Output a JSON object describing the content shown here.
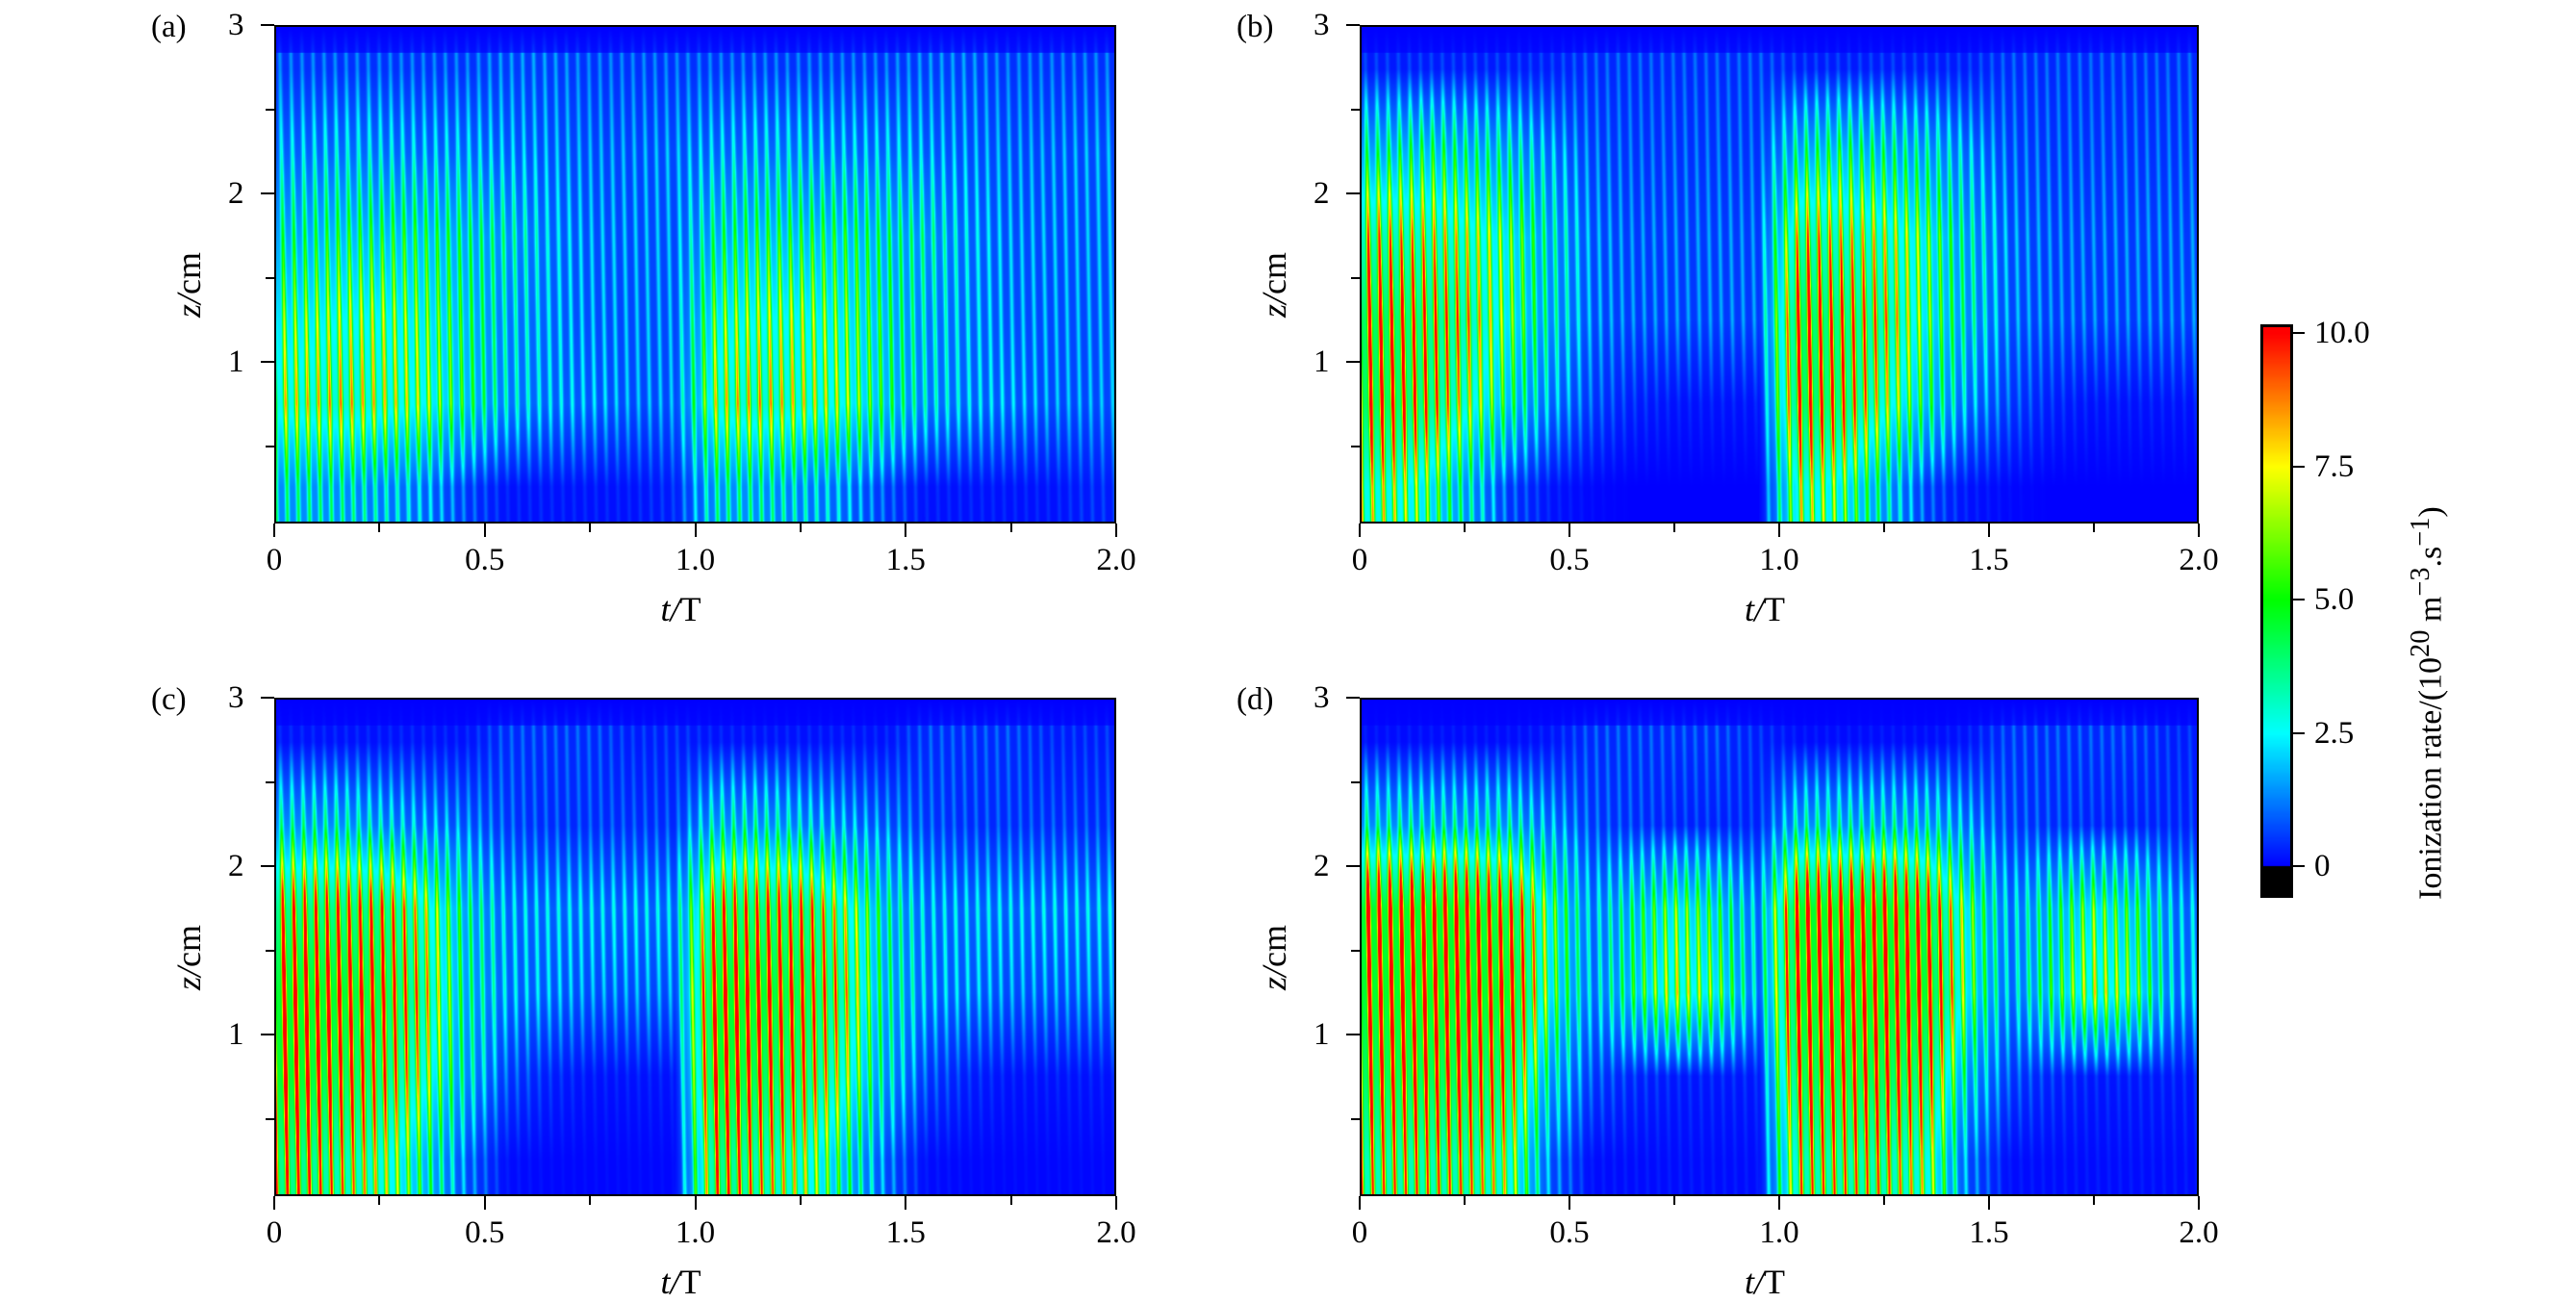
{
  "chart_data": [
    {
      "type": "heatmap",
      "panel_label": "(a)",
      "xlabel": "t/T",
      "ylabel": "z/cm",
      "xlim": [
        0,
        2.0
      ],
      "ylim": [
        0,
        3
      ],
      "xticks": [
        "0",
        "0.5",
        "1.0",
        "1.5",
        "2.0"
      ],
      "yticks": [
        "1",
        "2",
        "3"
      ],
      "z_rows": [
        2.75,
        2.25,
        1.75,
        1.25,
        0.75,
        0.25
      ],
      "t_cols": [
        0.05,
        0.15,
        0.25,
        0.35,
        0.45,
        0.55,
        0.65,
        0.75,
        0.85,
        0.95,
        1.05,
        1.15,
        1.25,
        1.35,
        1.45,
        1.55,
        1.65,
        1.75,
        1.85,
        1.95
      ],
      "values": [
        [
          1,
          1,
          1,
          1,
          1,
          1.2,
          1.2,
          1,
          1,
          1,
          1,
          1,
          1,
          1,
          1,
          1.2,
          1.2,
          1,
          1,
          1
        ],
        [
          2,
          2.2,
          2.2,
          2,
          2,
          1.8,
          1.6,
          1.4,
          1.4,
          1.5,
          2,
          2.2,
          2.2,
          2,
          2,
          1.8,
          1.6,
          1.4,
          1.4,
          1.5
        ],
        [
          3.5,
          4,
          4,
          4,
          3.5,
          3,
          2,
          1.6,
          1.5,
          1.5,
          3.5,
          4,
          4,
          4,
          3.5,
          3,
          2,
          1.6,
          1.5,
          1.5
        ],
        [
          5,
          5.5,
          5.5,
          5,
          4,
          2.5,
          2,
          1.6,
          1.5,
          1.5,
          5,
          5.5,
          5.5,
          5,
          4,
          2.5,
          2,
          1.6,
          1.5,
          1.5
        ],
        [
          6,
          6.5,
          6,
          5.5,
          4,
          2.5,
          2,
          1.8,
          1.5,
          1.5,
          6,
          6.5,
          6,
          5.5,
          4,
          2.5,
          2,
          1.8,
          1.5,
          1.5
        ],
        [
          3,
          3,
          2.5,
          2,
          1,
          0.3,
          0.3,
          0.3,
          0.3,
          0.5,
          3,
          3,
          2.5,
          2,
          1,
          0.3,
          0.3,
          0.3,
          0.3,
          0.5
        ]
      ]
    },
    {
      "type": "heatmap",
      "panel_label": "(b)",
      "xlabel": "t/T",
      "ylabel": "z/cm",
      "xlim": [
        0,
        2.0
      ],
      "ylim": [
        0,
        3
      ],
      "xticks": [
        "0",
        "0.5",
        "1.0",
        "1.5",
        "2.0"
      ],
      "yticks": [
        "1",
        "2",
        "3"
      ],
      "z_rows": [
        2.75,
        2.25,
        1.75,
        1.25,
        0.75,
        0.25
      ],
      "t_cols": [
        0.05,
        0.15,
        0.25,
        0.35,
        0.45,
        0.55,
        0.65,
        0.75,
        0.85,
        0.95,
        1.05,
        1.15,
        1.25,
        1.35,
        1.45,
        1.55,
        1.65,
        1.75,
        1.85,
        1.95
      ],
      "values": [
        [
          0.5,
          0.5,
          0.5,
          0.5,
          0.5,
          0.8,
          0.8,
          0.8,
          0.8,
          0.8,
          0.5,
          0.5,
          0.5,
          0.5,
          0.5,
          0.8,
          0.8,
          0.8,
          0.8,
          0.8
        ],
        [
          3.5,
          4,
          3.5,
          3,
          2,
          1.2,
          1,
          1,
          1,
          1,
          3.5,
          4,
          3.5,
          3,
          2,
          1.2,
          1,
          1,
          1,
          1
        ],
        [
          7,
          6.5,
          6,
          5,
          3,
          1.5,
          1.2,
          1.2,
          1.2,
          1.2,
          7,
          6.5,
          6,
          5,
          3,
          1.5,
          1.2,
          1.2,
          1.2,
          1.2
        ],
        [
          9,
          8,
          7,
          5,
          3,
          1.5,
          1.2,
          1.2,
          1.2,
          1.2,
          9,
          8,
          7,
          5,
          3,
          1.5,
          1.2,
          1.2,
          1.2,
          1.2
        ],
        [
          9,
          8,
          6,
          4,
          2,
          1,
          0.5,
          0.3,
          0.3,
          0.3,
          9,
          8,
          6,
          4,
          2,
          1,
          0.5,
          0.3,
          0.3,
          0.3
        ],
        [
          6,
          5,
          3,
          1,
          0.3,
          0.1,
          0,
          0,
          0,
          0,
          6,
          5,
          3,
          1,
          0.3,
          0.1,
          0,
          0,
          0,
          0
        ]
      ]
    },
    {
      "type": "heatmap",
      "panel_label": "(c)",
      "xlabel": "t/T",
      "ylabel": "z/cm",
      "xlim": [
        0,
        2.0
      ],
      "ylim": [
        0,
        3
      ],
      "xticks": [
        "0",
        "0.5",
        "1.0",
        "1.5",
        "2.0"
      ],
      "yticks": [
        "1",
        "2",
        "3"
      ],
      "z_rows": [
        2.75,
        2.25,
        1.75,
        1.25,
        0.75,
        0.25
      ],
      "t_cols": [
        0.05,
        0.15,
        0.25,
        0.35,
        0.45,
        0.55,
        0.65,
        0.75,
        0.85,
        0.95,
        1.05,
        1.15,
        1.25,
        1.35,
        1.45,
        1.55,
        1.65,
        1.75,
        1.85,
        1.95
      ],
      "values": [
        [
          0.3,
          0.3,
          0.3,
          0.3,
          0.3,
          0.8,
          0.8,
          0.8,
          0.5,
          0.5,
          0.3,
          0.3,
          0.3,
          0.3,
          0.3,
          0.8,
          0.8,
          0.8,
          0.5,
          0.5
        ],
        [
          3,
          3,
          2.5,
          2,
          1.5,
          1,
          0.8,
          0.8,
          0.8,
          0.8,
          3,
          3,
          2.5,
          2,
          1.5,
          1,
          0.8,
          0.8,
          0.8,
          0.8
        ],
        [
          8,
          8,
          8,
          6,
          3.5,
          2,
          2,
          2,
          2,
          2,
          8,
          8,
          8,
          6,
          3.5,
          2,
          2,
          2,
          2,
          2
        ],
        [
          10,
          10,
          9,
          7,
          3.5,
          2,
          1.8,
          1.5,
          1.5,
          1.5,
          10,
          10,
          9,
          7,
          3.5,
          2,
          1.8,
          1.5,
          1.5,
          1.5
        ],
        [
          10,
          9,
          8,
          6,
          3,
          1,
          0.5,
          0.3,
          0.3,
          0.3,
          10,
          9,
          8,
          6,
          3,
          1,
          0.5,
          0.3,
          0.3,
          0.3
        ],
        [
          8,
          7,
          6,
          4,
          1.5,
          0.2,
          0.1,
          0.1,
          0.1,
          0.1,
          8,
          7,
          6,
          4,
          1.5,
          0.2,
          0.1,
          0.1,
          0.1,
          0.1
        ]
      ]
    },
    {
      "type": "heatmap",
      "panel_label": "(d)",
      "xlabel": "t/T",
      "ylabel": "z/cm",
      "xlim": [
        0,
        2.0
      ],
      "ylim": [
        0,
        3
      ],
      "xticks": [
        "0",
        "0.5",
        "1.0",
        "1.5",
        "2.0"
      ],
      "yticks": [
        "1",
        "2",
        "3"
      ],
      "z_rows": [
        2.75,
        2.25,
        1.75,
        1.25,
        0.75,
        0.25
      ],
      "t_cols": [
        0.05,
        0.15,
        0.25,
        0.35,
        0.45,
        0.55,
        0.65,
        0.75,
        0.85,
        0.95,
        1.05,
        1.15,
        1.25,
        1.35,
        1.45,
        1.55,
        1.65,
        1.75,
        1.85,
        1.95
      ],
      "values": [
        [
          0.2,
          0.2,
          0.2,
          0.2,
          0.3,
          0.8,
          0.8,
          0.8,
          0.8,
          0.5,
          0.2,
          0.2,
          0.2,
          0.2,
          0.3,
          0.8,
          0.8,
          0.8,
          0.8,
          0.5
        ],
        [
          3,
          3,
          3,
          3,
          2,
          1,
          0.8,
          0.6,
          0.6,
          0.6,
          3,
          3,
          3,
          3,
          2,
          1,
          0.8,
          0.6,
          0.6,
          0.6
        ],
        [
          10,
          10,
          10,
          9,
          5,
          2,
          3.5,
          5,
          4,
          2,
          10,
          10,
          10,
          9,
          5,
          2,
          3.5,
          5,
          4,
          2
        ],
        [
          10,
          10,
          10,
          10,
          5,
          2,
          4,
          6,
          5,
          2,
          10,
          10,
          10,
          10,
          5,
          2,
          4,
          6,
          5,
          2
        ],
        [
          9,
          9,
          9,
          8,
          3,
          1,
          0.6,
          0.4,
          0.4,
          0.4,
          9,
          9,
          9,
          8,
          3,
          1,
          0.6,
          0.4,
          0.4,
          0.4
        ],
        [
          7,
          7,
          7,
          6,
          1.5,
          0.2,
          0.2,
          0.2,
          0.2,
          0.2,
          7,
          7,
          7,
          6,
          1.5,
          0.2,
          0.2,
          0.2,
          0.2,
          0.2
        ]
      ]
    }
  ],
  "colorbar": {
    "min": 0,
    "max": 10,
    "ticks": [
      "0",
      "2.5",
      "5.0",
      "7.5",
      "10.0"
    ],
    "label_prefix": "Ionization rate/(10",
    "label_exp1": "20",
    "label_mid": " m",
    "label_exp2": "−3",
    "label_mid2": ".s",
    "label_exp3": "−1",
    "label_suffix": ")",
    "colors": [
      "#0000ff",
      "#00ffff",
      "#00ff00",
      "#ffff00",
      "#ff0000"
    ],
    "under_color": "#000000"
  }
}
